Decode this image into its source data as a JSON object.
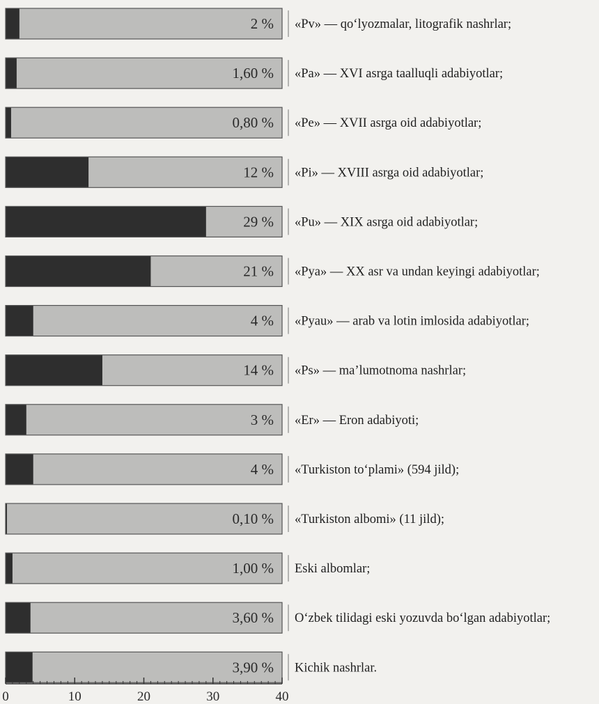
{
  "chart_data": {
    "type": "bar",
    "orientation": "horizontal",
    "xlim": [
      0,
      40
    ],
    "x_ticks": [
      0,
      10,
      20,
      30,
      40
    ],
    "bar_colors": {
      "filled": "#2e2e2e",
      "remainder": "#bdbdbb",
      "border": "#555555"
    },
    "bars": [
      {
        "value": 2,
        "label": "2 %",
        "description": "«Pv» — qo‘lyozmalar, litografik nashrlar;"
      },
      {
        "value": 1.6,
        "label": "1,60 %",
        "description": "«Pa» — XVI  asrga taalluqli adabiyotlar;"
      },
      {
        "value": 0.8,
        "label": "0,80 %",
        "description": "«Pe» — XVII  asrga oid adabiyotlar;"
      },
      {
        "value": 12,
        "label": "12 %",
        "description": "«Pi» — XVIII asrga oid adabiyotlar;"
      },
      {
        "value": 29,
        "label": "29 %",
        "description": "«Pu» — XIX asrga oid adabiyotlar;"
      },
      {
        "value": 21,
        "label": "21 %",
        "description": "«Pya» — XX asr va undan keyingi adabiyotlar;"
      },
      {
        "value": 4,
        "label": "4 %",
        "description": "«Pyau» — arab va lotin imlosida adabiyotlar;"
      },
      {
        "value": 14,
        "label": "14 %",
        "description": "«Ps» — ma’lumotnoma nashrlar;"
      },
      {
        "value": 3,
        "label": "3 %",
        "description": "«Er» — Eron adabiyoti;"
      },
      {
        "value": 4,
        "label": "4 %",
        "description": "«Turkiston to‘plami» (594 jild);"
      },
      {
        "value": 0.1,
        "label": "0,10 %",
        "description": "«Turkiston albomi» (11 jild);"
      },
      {
        "value": 1,
        "label": "1,00 %",
        "description": "Eski albomlar;"
      },
      {
        "value": 3.6,
        "label": "3,60 %",
        "description": "O‘zbek tilidagi eski yozuvda bo‘lgan adabiyotlar;"
      },
      {
        "value": 3.9,
        "label": "3,90 %",
        "description": "Kichik nashrlar."
      }
    ]
  }
}
